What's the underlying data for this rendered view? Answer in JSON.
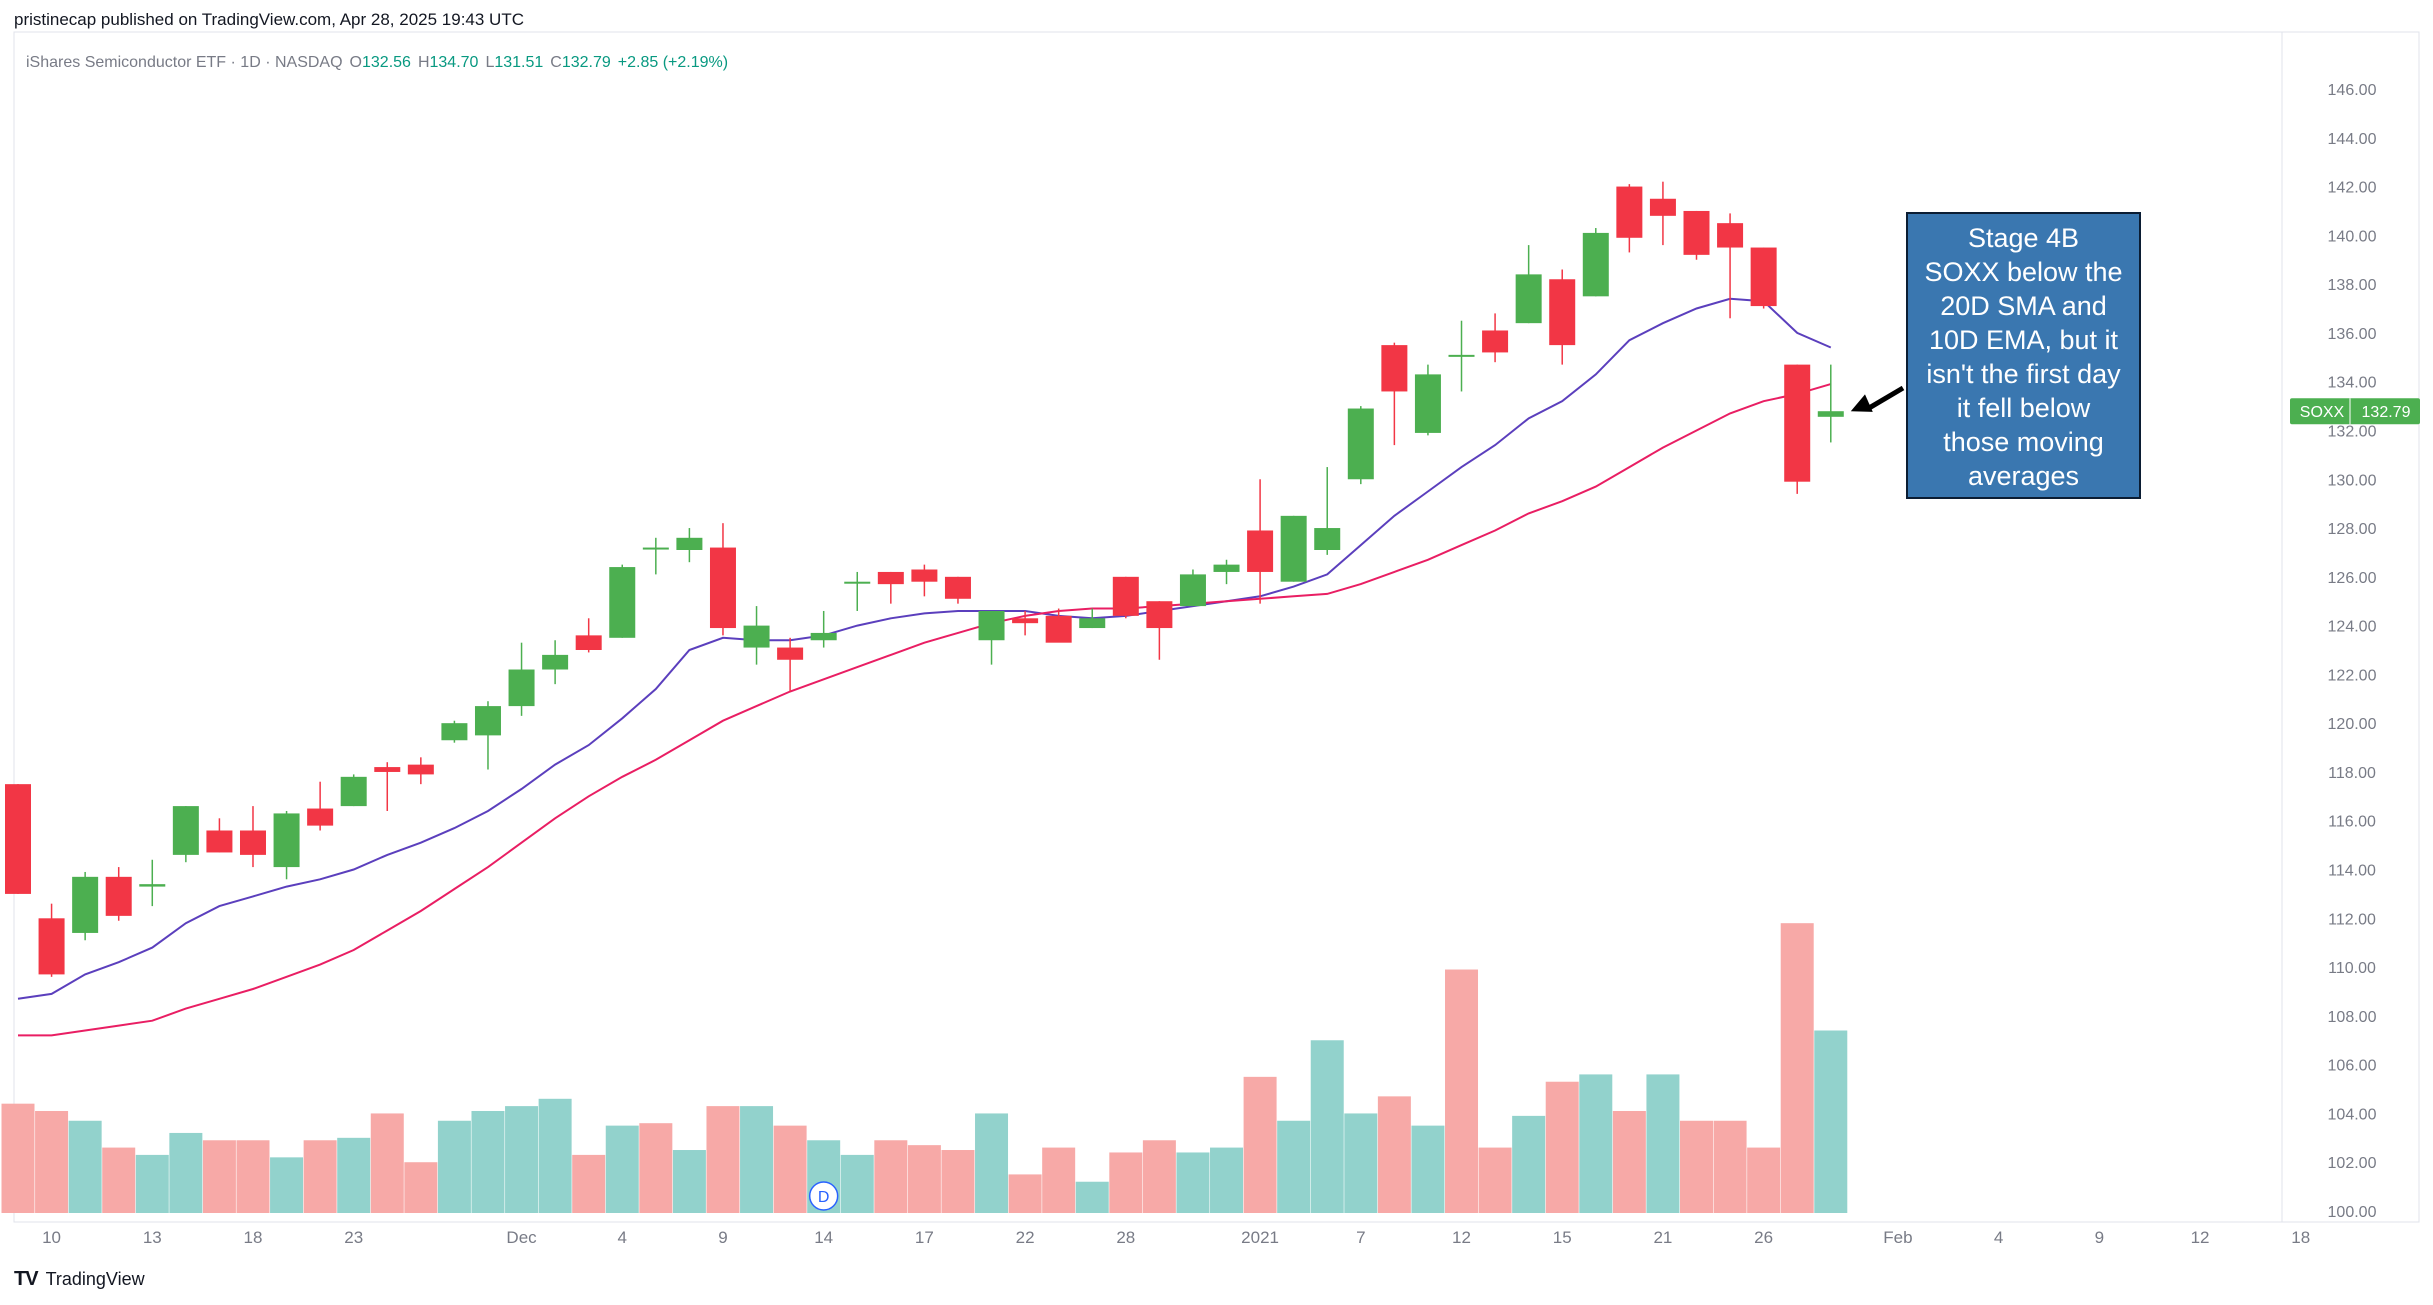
{
  "publisher": "pristinecap published on TradingView.com, Apr 28, 2025 19:43 UTC",
  "footer": {
    "brand": "TradingView"
  },
  "legend": {
    "instrument": "iShares Semiconductor ETF · 1D · NASDAQ",
    "o_label": "O",
    "o_value": "132.56",
    "h_label": "H",
    "h_value": "134.70",
    "l_label": "L",
    "l_value": "131.51",
    "c_label": "C",
    "c_value": "132.79",
    "change": "+2.85 (+2.19%)"
  },
  "price_tag": {
    "symbol": "SOXX",
    "value": "132.79"
  },
  "annotation": {
    "lines": [
      "Stage 4B",
      "SOXX below the",
      "20D SMA and",
      "10D EMA, but it",
      "isn't the first day",
      "it fell below",
      "those moving",
      "averages"
    ]
  },
  "event_marker": "D",
  "colors": {
    "up": "#4caf50",
    "down": "#f23645",
    "vol_up": "#92d2cc",
    "vol_down": "#f7a9a7",
    "sma20": "#e91e63",
    "ema10": "#5b3fbd",
    "annotation_bg": "#3a77b0",
    "price_tag": "#4caf50"
  },
  "chart_data": {
    "type": "candlestick",
    "ylim": [
      100,
      147
    ],
    "yticks": [
      "146.00",
      "144.00",
      "142.00",
      "140.00",
      "138.00",
      "136.00",
      "134.00",
      "132.00",
      "130.00",
      "128.00",
      "126.00",
      "124.00",
      "122.00",
      "120.00",
      "118.00",
      "116.00",
      "114.00",
      "112.00",
      "110.00",
      "108.00",
      "106.00",
      "104.00",
      "102.00",
      "100.00"
    ],
    "xticks": [
      {
        "label": "10",
        "i": 1
      },
      {
        "label": "13",
        "i": 4
      },
      {
        "label": "18",
        "i": 7
      },
      {
        "label": "23",
        "i": 10
      },
      {
        "label": "Dec",
        "i": 15
      },
      {
        "label": "4",
        "i": 18
      },
      {
        "label": "9",
        "i": 21
      },
      {
        "label": "14",
        "i": 24
      },
      {
        "label": "17",
        "i": 27
      },
      {
        "label": "22",
        "i": 30
      },
      {
        "label": "28",
        "i": 33
      },
      {
        "label": "2021",
        "i": 37
      },
      {
        "label": "7",
        "i": 40
      },
      {
        "label": "12",
        "i": 43
      },
      {
        "label": "15",
        "i": 46
      },
      {
        "label": "21",
        "i": 49
      },
      {
        "label": "26",
        "i": 52
      },
      {
        "label": "Feb",
        "i": 56
      },
      {
        "label": "4",
        "i": 59
      },
      {
        "label": "9",
        "i": 62
      },
      {
        "label": "12",
        "i": 65
      },
      {
        "label": "18",
        "i": 68
      }
    ],
    "candles": [
      [
        117.5,
        117.5,
        113.0,
        113.0
      ],
      [
        112.0,
        112.6,
        109.6,
        109.7
      ],
      [
        111.4,
        113.9,
        111.1,
        113.7
      ],
      [
        113.7,
        114.1,
        111.9,
        112.1
      ],
      [
        113.3,
        114.4,
        112.5,
        113.4
      ],
      [
        114.6,
        116.6,
        114.3,
        116.6
      ],
      [
        115.6,
        116.1,
        114.7,
        114.7
      ],
      [
        115.6,
        116.6,
        114.1,
        114.6
      ],
      [
        114.1,
        116.4,
        113.6,
        116.3
      ],
      [
        116.5,
        117.6,
        115.6,
        115.8
      ],
      [
        116.6,
        117.9,
        116.6,
        117.8
      ],
      [
        118.2,
        118.4,
        116.4,
        118.0
      ],
      [
        118.3,
        118.6,
        117.5,
        117.9
      ],
      [
        119.3,
        120.1,
        119.2,
        120.0
      ],
      [
        119.5,
        120.9,
        118.1,
        120.7
      ],
      [
        120.7,
        123.3,
        120.3,
        122.2
      ],
      [
        122.2,
        123.4,
        121.6,
        122.8
      ],
      [
        123.6,
        124.3,
        122.9,
        123.0
      ],
      [
        123.5,
        126.5,
        123.5,
        126.4
      ],
      [
        127.2,
        127.6,
        126.1,
        127.2
      ],
      [
        127.1,
        128.0,
        126.6,
        127.6
      ],
      [
        127.2,
        128.2,
        123.6,
        123.9
      ],
      [
        123.1,
        124.8,
        122.4,
        124.0
      ],
      [
        123.1,
        123.5,
        121.3,
        122.6
      ],
      [
        123.4,
        124.6,
        123.1,
        123.7
      ],
      [
        125.8,
        126.2,
        124.6,
        125.8
      ],
      [
        126.2,
        126.2,
        124.9,
        125.7
      ],
      [
        126.3,
        126.5,
        125.2,
        125.8
      ],
      [
        126.0,
        126.0,
        124.9,
        125.1
      ],
      [
        123.4,
        124.6,
        122.4,
        124.6
      ],
      [
        124.3,
        124.6,
        123.6,
        124.1
      ],
      [
        124.4,
        124.7,
        123.4,
        123.3
      ],
      [
        123.9,
        124.7,
        123.9,
        124.3
      ],
      [
        126.0,
        126.0,
        124.3,
        124.4
      ],
      [
        125.0,
        125.0,
        122.6,
        123.9
      ],
      [
        124.8,
        126.3,
        124.8,
        126.1
      ],
      [
        126.2,
        126.7,
        125.7,
        126.5
      ],
      [
        127.9,
        130.0,
        124.9,
        126.2
      ],
      [
        125.8,
        128.5,
        125.8,
        128.5
      ],
      [
        127.1,
        130.5,
        126.9,
        128.0
      ],
      [
        130.0,
        133.0,
        129.8,
        132.9
      ],
      [
        135.5,
        135.6,
        131.4,
        133.6
      ],
      [
        131.9,
        134.7,
        131.8,
        134.3
      ],
      [
        135.1,
        136.5,
        133.6,
        135.1
      ],
      [
        136.1,
        136.8,
        134.8,
        135.2
      ],
      [
        136.4,
        139.6,
        136.4,
        138.4
      ],
      [
        138.2,
        138.6,
        134.7,
        135.5
      ],
      [
        137.5,
        140.3,
        137.5,
        140.1
      ],
      [
        142.0,
        142.1,
        139.3,
        139.9
      ],
      [
        141.5,
        142.2,
        139.6,
        140.8
      ],
      [
        141.0,
        141.0,
        139.0,
        139.2
      ],
      [
        140.5,
        140.9,
        136.6,
        139.5
      ],
      [
        139.5,
        139.5,
        137.0,
        137.1
      ],
      [
        134.7,
        134.7,
        129.4,
        129.9
      ],
      [
        132.56,
        134.7,
        131.51,
        132.79
      ]
    ],
    "volume": [
      [
        104.4,
        0
      ],
      [
        104.1,
        0
      ],
      [
        103.7,
        1
      ],
      [
        102.6,
        0
      ],
      [
        102.3,
        1
      ],
      [
        103.2,
        1
      ],
      [
        102.9,
        0
      ],
      [
        102.9,
        0
      ],
      [
        102.2,
        1
      ],
      [
        102.9,
        0
      ],
      [
        103.0,
        1
      ],
      [
        104.0,
        0
      ],
      [
        102.0,
        0
      ],
      [
        103.7,
        1
      ],
      [
        104.1,
        1
      ],
      [
        104.3,
        1
      ],
      [
        104.6,
        1
      ],
      [
        102.3,
        0
      ],
      [
        103.5,
        1
      ],
      [
        103.6,
        0
      ],
      [
        102.5,
        1
      ],
      [
        104.3,
        0
      ],
      [
        104.3,
        1
      ],
      [
        103.5,
        0
      ],
      [
        102.9,
        1
      ],
      [
        102.3,
        1
      ],
      [
        102.9,
        0
      ],
      [
        102.7,
        0
      ],
      [
        102.5,
        0
      ],
      [
        104.0,
        1
      ],
      [
        101.5,
        0
      ],
      [
        102.6,
        0
      ],
      [
        101.2,
        1
      ],
      [
        102.4,
        0
      ],
      [
        102.9,
        0
      ],
      [
        102.4,
        1
      ],
      [
        102.6,
        1
      ],
      [
        105.5,
        0
      ],
      [
        103.7,
        1
      ],
      [
        107.0,
        1
      ],
      [
        104.0,
        1
      ],
      [
        104.7,
        0
      ],
      [
        103.5,
        1
      ],
      [
        109.9,
        0
      ],
      [
        102.6,
        0
      ],
      [
        103.9,
        1
      ],
      [
        105.3,
        0
      ],
      [
        105.6,
        1
      ],
      [
        104.1,
        0
      ],
      [
        105.6,
        1
      ],
      [
        103.7,
        0
      ],
      [
        103.7,
        0
      ],
      [
        102.6,
        0
      ],
      [
        111.8,
        0
      ],
      [
        107.4,
        1
      ]
    ],
    "sma20": [
      [
        0,
        108.7
      ],
      [
        1,
        108.9
      ],
      [
        2,
        109.7
      ],
      [
        3,
        110.2
      ],
      [
        4,
        110.8
      ],
      [
        5,
        111.8
      ],
      [
        6,
        112.5
      ],
      [
        7,
        112.9
      ],
      [
        8,
        113.3
      ],
      [
        9,
        113.6
      ],
      [
        10,
        114.0
      ],
      [
        11,
        114.6
      ],
      [
        12,
        115.1
      ],
      [
        13,
        115.7
      ],
      [
        14,
        116.4
      ],
      [
        15,
        117.3
      ],
      [
        16,
        118.3
      ],
      [
        17,
        119.1
      ],
      [
        18,
        120.2
      ],
      [
        19,
        121.4
      ],
      [
        20,
        123.0
      ],
      [
        21,
        123.5
      ],
      [
        22,
        123.4
      ],
      [
        23,
        123.4
      ],
      [
        24,
        123.6
      ],
      [
        25,
        124.0
      ],
      [
        26,
        124.3
      ],
      [
        27,
        124.5
      ],
      [
        28,
        124.6
      ],
      [
        29,
        124.6
      ],
      [
        30,
        124.6
      ],
      [
        31,
        124.4
      ],
      [
        32,
        124.3
      ],
      [
        33,
        124.4
      ],
      [
        34,
        124.6
      ],
      [
        35,
        124.8
      ],
      [
        36,
        125.0
      ],
      [
        37,
        125.2
      ],
      [
        38,
        125.6
      ],
      [
        39,
        126.1
      ],
      [
        40,
        127.3
      ],
      [
        41,
        128.5
      ],
      [
        42,
        129.5
      ],
      [
        43,
        130.5
      ],
      [
        44,
        131.4
      ],
      [
        45,
        132.5
      ],
      [
        46,
        133.2
      ],
      [
        47,
        134.3
      ],
      [
        48,
        135.7
      ],
      [
        49,
        136.4
      ],
      [
        50,
        137.0
      ],
      [
        51,
        137.4
      ],
      [
        52,
        137.3
      ],
      [
        53,
        136.0
      ],
      [
        54,
        135.4
      ]
    ],
    "ema10": [
      [
        0,
        107.2
      ],
      [
        1,
        107.2
      ],
      [
        2,
        107.4
      ],
      [
        3,
        107.6
      ],
      [
        4,
        107.8
      ],
      [
        5,
        108.3
      ],
      [
        6,
        108.7
      ],
      [
        7,
        109.1
      ],
      [
        8,
        109.6
      ],
      [
        9,
        110.1
      ],
      [
        10,
        110.7
      ],
      [
        11,
        111.5
      ],
      [
        12,
        112.3
      ],
      [
        13,
        113.2
      ],
      [
        14,
        114.1
      ],
      [
        15,
        115.1
      ],
      [
        16,
        116.1
      ],
      [
        17,
        117.0
      ],
      [
        18,
        117.8
      ],
      [
        19,
        118.5
      ],
      [
        20,
        119.3
      ],
      [
        21,
        120.1
      ],
      [
        22,
        120.7
      ],
      [
        23,
        121.3
      ],
      [
        24,
        121.8
      ],
      [
        25,
        122.3
      ],
      [
        26,
        122.8
      ],
      [
        27,
        123.3
      ],
      [
        28,
        123.7
      ],
      [
        29,
        124.1
      ],
      [
        30,
        124.4
      ],
      [
        31,
        124.6
      ],
      [
        32,
        124.7
      ],
      [
        33,
        124.7
      ],
      [
        34,
        124.8
      ],
      [
        35,
        124.9
      ],
      [
        36,
        125.0
      ],
      [
        37,
        125.1
      ],
      [
        38,
        125.2
      ],
      [
        39,
        125.3
      ],
      [
        40,
        125.7
      ],
      [
        41,
        126.2
      ],
      [
        42,
        126.7
      ],
      [
        43,
        127.3
      ],
      [
        44,
        127.9
      ],
      [
        45,
        128.6
      ],
      [
        46,
        129.1
      ],
      [
        47,
        129.7
      ],
      [
        48,
        130.5
      ],
      [
        49,
        131.3
      ],
      [
        50,
        132.0
      ],
      [
        51,
        132.7
      ],
      [
        52,
        133.2
      ],
      [
        53,
        133.5
      ],
      [
        54,
        133.9
      ]
    ]
  }
}
